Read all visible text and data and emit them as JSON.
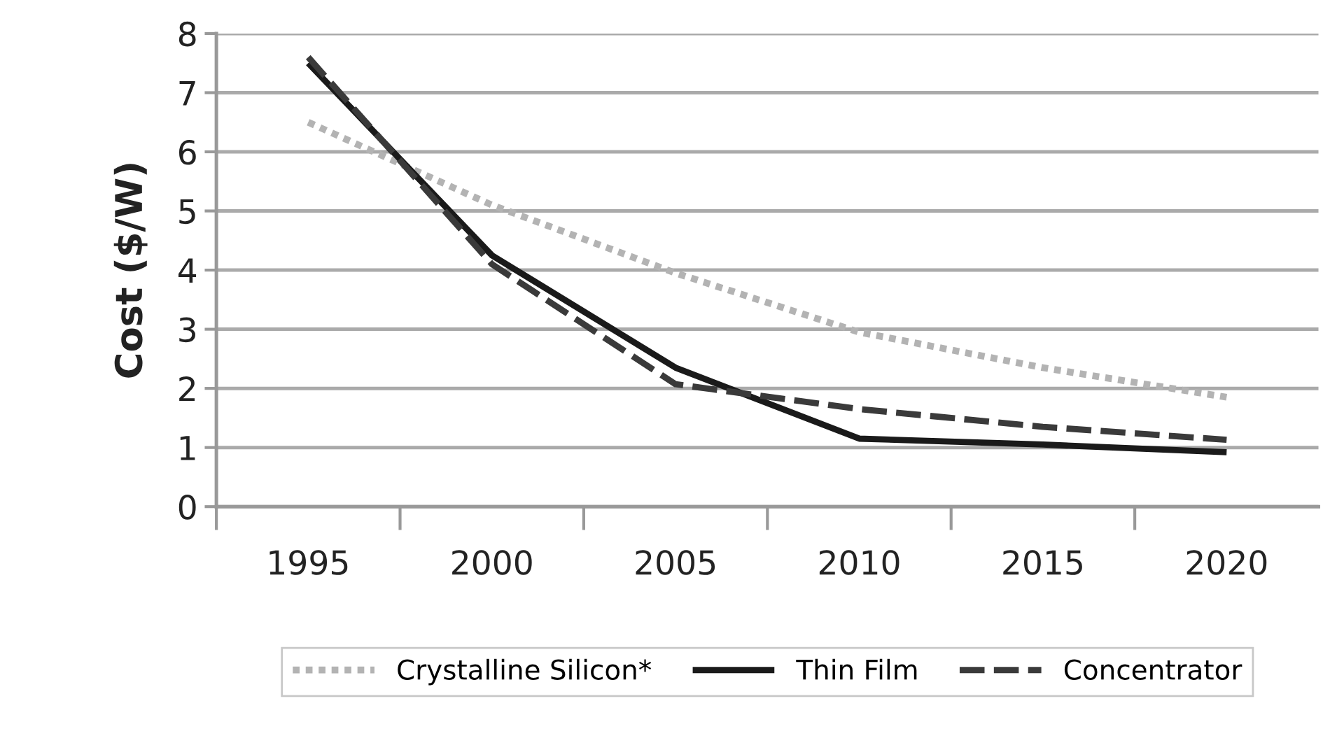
{
  "chart_data": {
    "type": "line",
    "ylabel": "Cost ($/W)",
    "categories": [
      "1995",
      "2000",
      "2005",
      "2010",
      "2015",
      "2020"
    ],
    "ylim": [
      0,
      8
    ],
    "yticks": [
      0,
      1,
      2,
      3,
      4,
      5,
      6,
      7,
      8
    ],
    "grid": "y",
    "legend": "bottom",
    "series": [
      {
        "name": "Crystalline Silicon*",
        "color": "#b3b3b3",
        "line_style": "dotted",
        "values": [
          6.5,
          5.1,
          3.95,
          2.95,
          2.35,
          1.85
        ]
      },
      {
        "name": "Thin Film",
        "color": "#1a1a1a",
        "line_style": "solid",
        "values": [
          7.5,
          4.25,
          2.35,
          1.15,
          1.05,
          0.92
        ]
      },
      {
        "name": "Concentrator",
        "color": "#3a3a3a",
        "line_style": "dashed",
        "values": [
          7.6,
          4.1,
          2.07,
          1.65,
          1.35,
          1.13
        ]
      }
    ]
  }
}
